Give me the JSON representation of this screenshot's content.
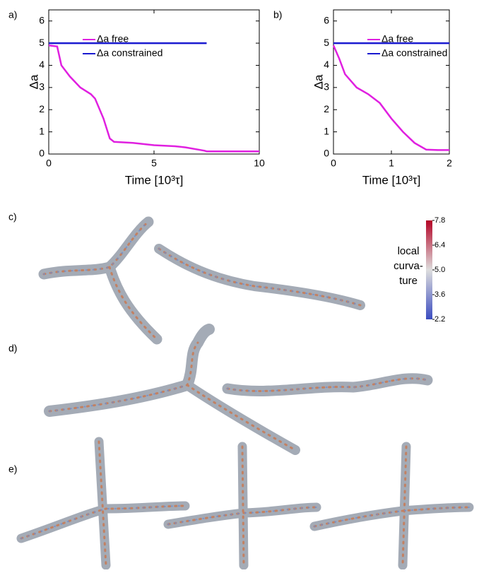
{
  "panel_labels": [
    "a)",
    "b)",
    "c)",
    "d)",
    "e)"
  ],
  "chart_data": [
    {
      "type": "line",
      "x_label": "Time [10³τ]",
      "y_label": "Δa",
      "x": [
        0,
        0.4,
        0.6,
        1,
        1.5,
        2,
        2.2,
        2.6,
        2.9,
        3.1,
        4,
        5,
        6,
        6.5,
        7.4,
        7.5,
        8,
        9,
        10
      ],
      "series": [
        {
          "name": "Δa free",
          "color": "#e020e0",
          "values": [
            4.9,
            4.85,
            4.0,
            3.5,
            3.0,
            2.7,
            2.5,
            1.6,
            0.7,
            0.55,
            0.5,
            0.4,
            0.35,
            0.3,
            0.15,
            0.12,
            0.12,
            0.12,
            0.12
          ]
        },
        {
          "name": "Δa constrained",
          "color": "#1a1ad0",
          "values": [
            5,
            5,
            5,
            5,
            5,
            5,
            5,
            5,
            5,
            5,
            5,
            5,
            5,
            5,
            5,
            5,
            null,
            null,
            null
          ]
        }
      ],
      "xlim": [
        0,
        10
      ],
      "xticks": [
        0,
        5,
        10
      ],
      "ylim": [
        0,
        6.5
      ],
      "yticks": [
        0,
        1,
        2,
        3,
        4,
        5,
        6
      ]
    },
    {
      "type": "line",
      "x_label": "Time [10³τ]",
      "y_label": "Δa",
      "x": [
        0,
        0.1,
        0.2,
        0.4,
        0.6,
        0.8,
        1.0,
        1.2,
        1.4,
        1.6,
        1.8,
        2.0
      ],
      "series": [
        {
          "name": "Δa free",
          "color": "#e020e0",
          "values": [
            4.9,
            4.3,
            3.6,
            3.0,
            2.7,
            2.3,
            1.6,
            1.0,
            0.5,
            0.2,
            0.18,
            0.18
          ]
        },
        {
          "name": "Δa constrained",
          "color": "#1a1ad0",
          "values": [
            5,
            5,
            5,
            5,
            5,
            5,
            5,
            5,
            5,
            5,
            5,
            5
          ]
        }
      ],
      "xlim": [
        0,
        2
      ],
      "xticks": [
        0,
        1,
        2
      ],
      "ylim": [
        0,
        6.5
      ],
      "yticks": [
        0,
        1,
        2,
        3,
        4,
        5,
        6
      ]
    }
  ],
  "colorbar": {
    "title": [
      "local",
      "curva-",
      "ture"
    ],
    "lim": [
      2.2,
      7.8
    ],
    "ticks": [
      2.2,
      3.6,
      {
        "value": 5,
        "label": "5.0"
      },
      6.4,
      7.8
    ]
  }
}
